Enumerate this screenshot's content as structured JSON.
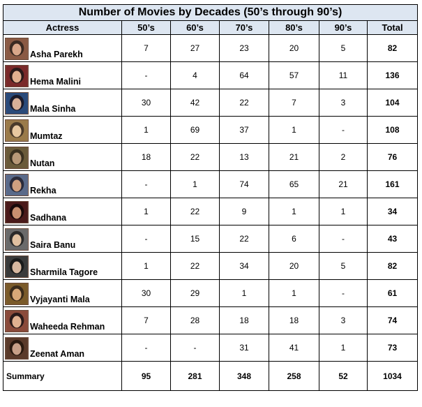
{
  "title": "Number of Movies by Decades (50’s through 90’s)",
  "columns": [
    "Actress",
    "50’s",
    "60’s",
    "70’s",
    "80’s",
    "90’s",
    "Total"
  ],
  "rows": [
    {
      "name": "Asha Parekh",
      "values": [
        "7",
        "27",
        "23",
        "20",
        "5"
      ],
      "total": "82"
    },
    {
      "name": "Hema Malini",
      "values": [
        "-",
        "4",
        "64",
        "57",
        "11"
      ],
      "total": "136"
    },
    {
      "name": "Mala Sinha",
      "values": [
        "30",
        "42",
        "22",
        "7",
        "3"
      ],
      "total": "104"
    },
    {
      "name": "Mumtaz",
      "values": [
        "1",
        "69",
        "37",
        "1",
        "-"
      ],
      "total": "108"
    },
    {
      "name": "Nutan",
      "values": [
        "18",
        "22",
        "13",
        "21",
        "2"
      ],
      "total": "76"
    },
    {
      "name": "Rekha",
      "values": [
        "-",
        "1",
        "74",
        "65",
        "21"
      ],
      "total": "161"
    },
    {
      "name": "Sadhana",
      "values": [
        "1",
        "22",
        "9",
        "1",
        "1"
      ],
      "total": "34"
    },
    {
      "name": "Saira Banu",
      "values": [
        "-",
        "15",
        "22",
        "6",
        "-"
      ],
      "total": "43"
    },
    {
      "name": "Sharmila Tagore",
      "values": [
        "1",
        "22",
        "34",
        "20",
        "5"
      ],
      "total": "82"
    },
    {
      "name": "Vyjayanti Mala",
      "values": [
        "30",
        "29",
        "1",
        "1",
        "-"
      ],
      "total": "61"
    },
    {
      "name": "Waheeda Rehman",
      "values": [
        "7",
        "28",
        "18",
        "18",
        "3"
      ],
      "total": "74"
    },
    {
      "name": "Zeenat Aman",
      "values": [
        "-",
        "-",
        "31",
        "41",
        "1"
      ],
      "total": "73"
    }
  ],
  "summary": {
    "label": "Summary",
    "values": [
      "95",
      "281",
      "348",
      "258",
      "52"
    ],
    "total": "1034"
  },
  "colors": {
    "header_bg": "#dde6f1",
    "border": "#000000"
  }
}
